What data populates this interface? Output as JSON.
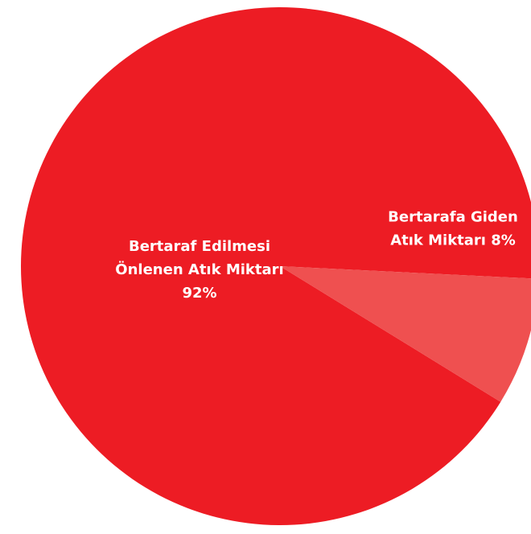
{
  "chart_data": {
    "type": "pie",
    "slices": [
      {
        "label_lines": [
          "Bertaraf Edilmesi",
          "Önlenen Atık Miktarı",
          "92%"
        ],
        "value": 92,
        "color": "#ED1C24"
      },
      {
        "label_lines": [
          "Bertarafa Giden",
          "Atık Miktarı 8%"
        ],
        "value": 8,
        "color": "#EF5050"
      }
    ]
  }
}
